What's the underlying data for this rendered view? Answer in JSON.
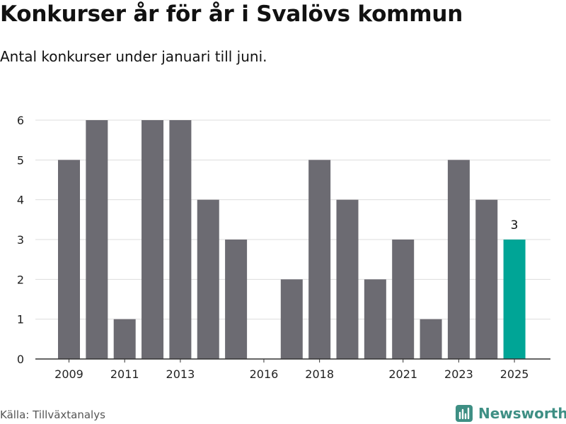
{
  "header": {
    "title": "Konkurser år för år i Svalövs kommun",
    "subtitle": "Antal konkurser under januari till juni."
  },
  "footer": {
    "source": "Källa: Tillväxtanalys",
    "brand": "Newsworthy",
    "brand_icon": "newsworthy-logo-icon"
  },
  "colors": {
    "bar": "#6c6b72",
    "highlight": "#00a596",
    "grid": "#dddddd",
    "axis": "#333333",
    "brand": "#3e8f84"
  },
  "chart_data": {
    "type": "bar",
    "categories": [
      "2009",
      "2010",
      "2011",
      "2012",
      "2013",
      "2014",
      "2015",
      "2016",
      "2017",
      "2018",
      "2019",
      "2020",
      "2021",
      "2022",
      "2023",
      "2024",
      "2025"
    ],
    "values": [
      5,
      6,
      1,
      6,
      6,
      4,
      3,
      0,
      2,
      5,
      4,
      2,
      3,
      1,
      5,
      4,
      3
    ],
    "x_tick_labels": [
      "2009",
      "2011",
      "2013",
      "2016",
      "2018",
      "2021",
      "2023",
      "2025"
    ],
    "y_ticks": [
      0,
      1,
      2,
      3,
      4,
      5,
      6
    ],
    "ylim": [
      0,
      6
    ],
    "highlight": {
      "category": "2025",
      "label": "3"
    },
    "grid": true,
    "xlabel": "",
    "ylabel": ""
  }
}
